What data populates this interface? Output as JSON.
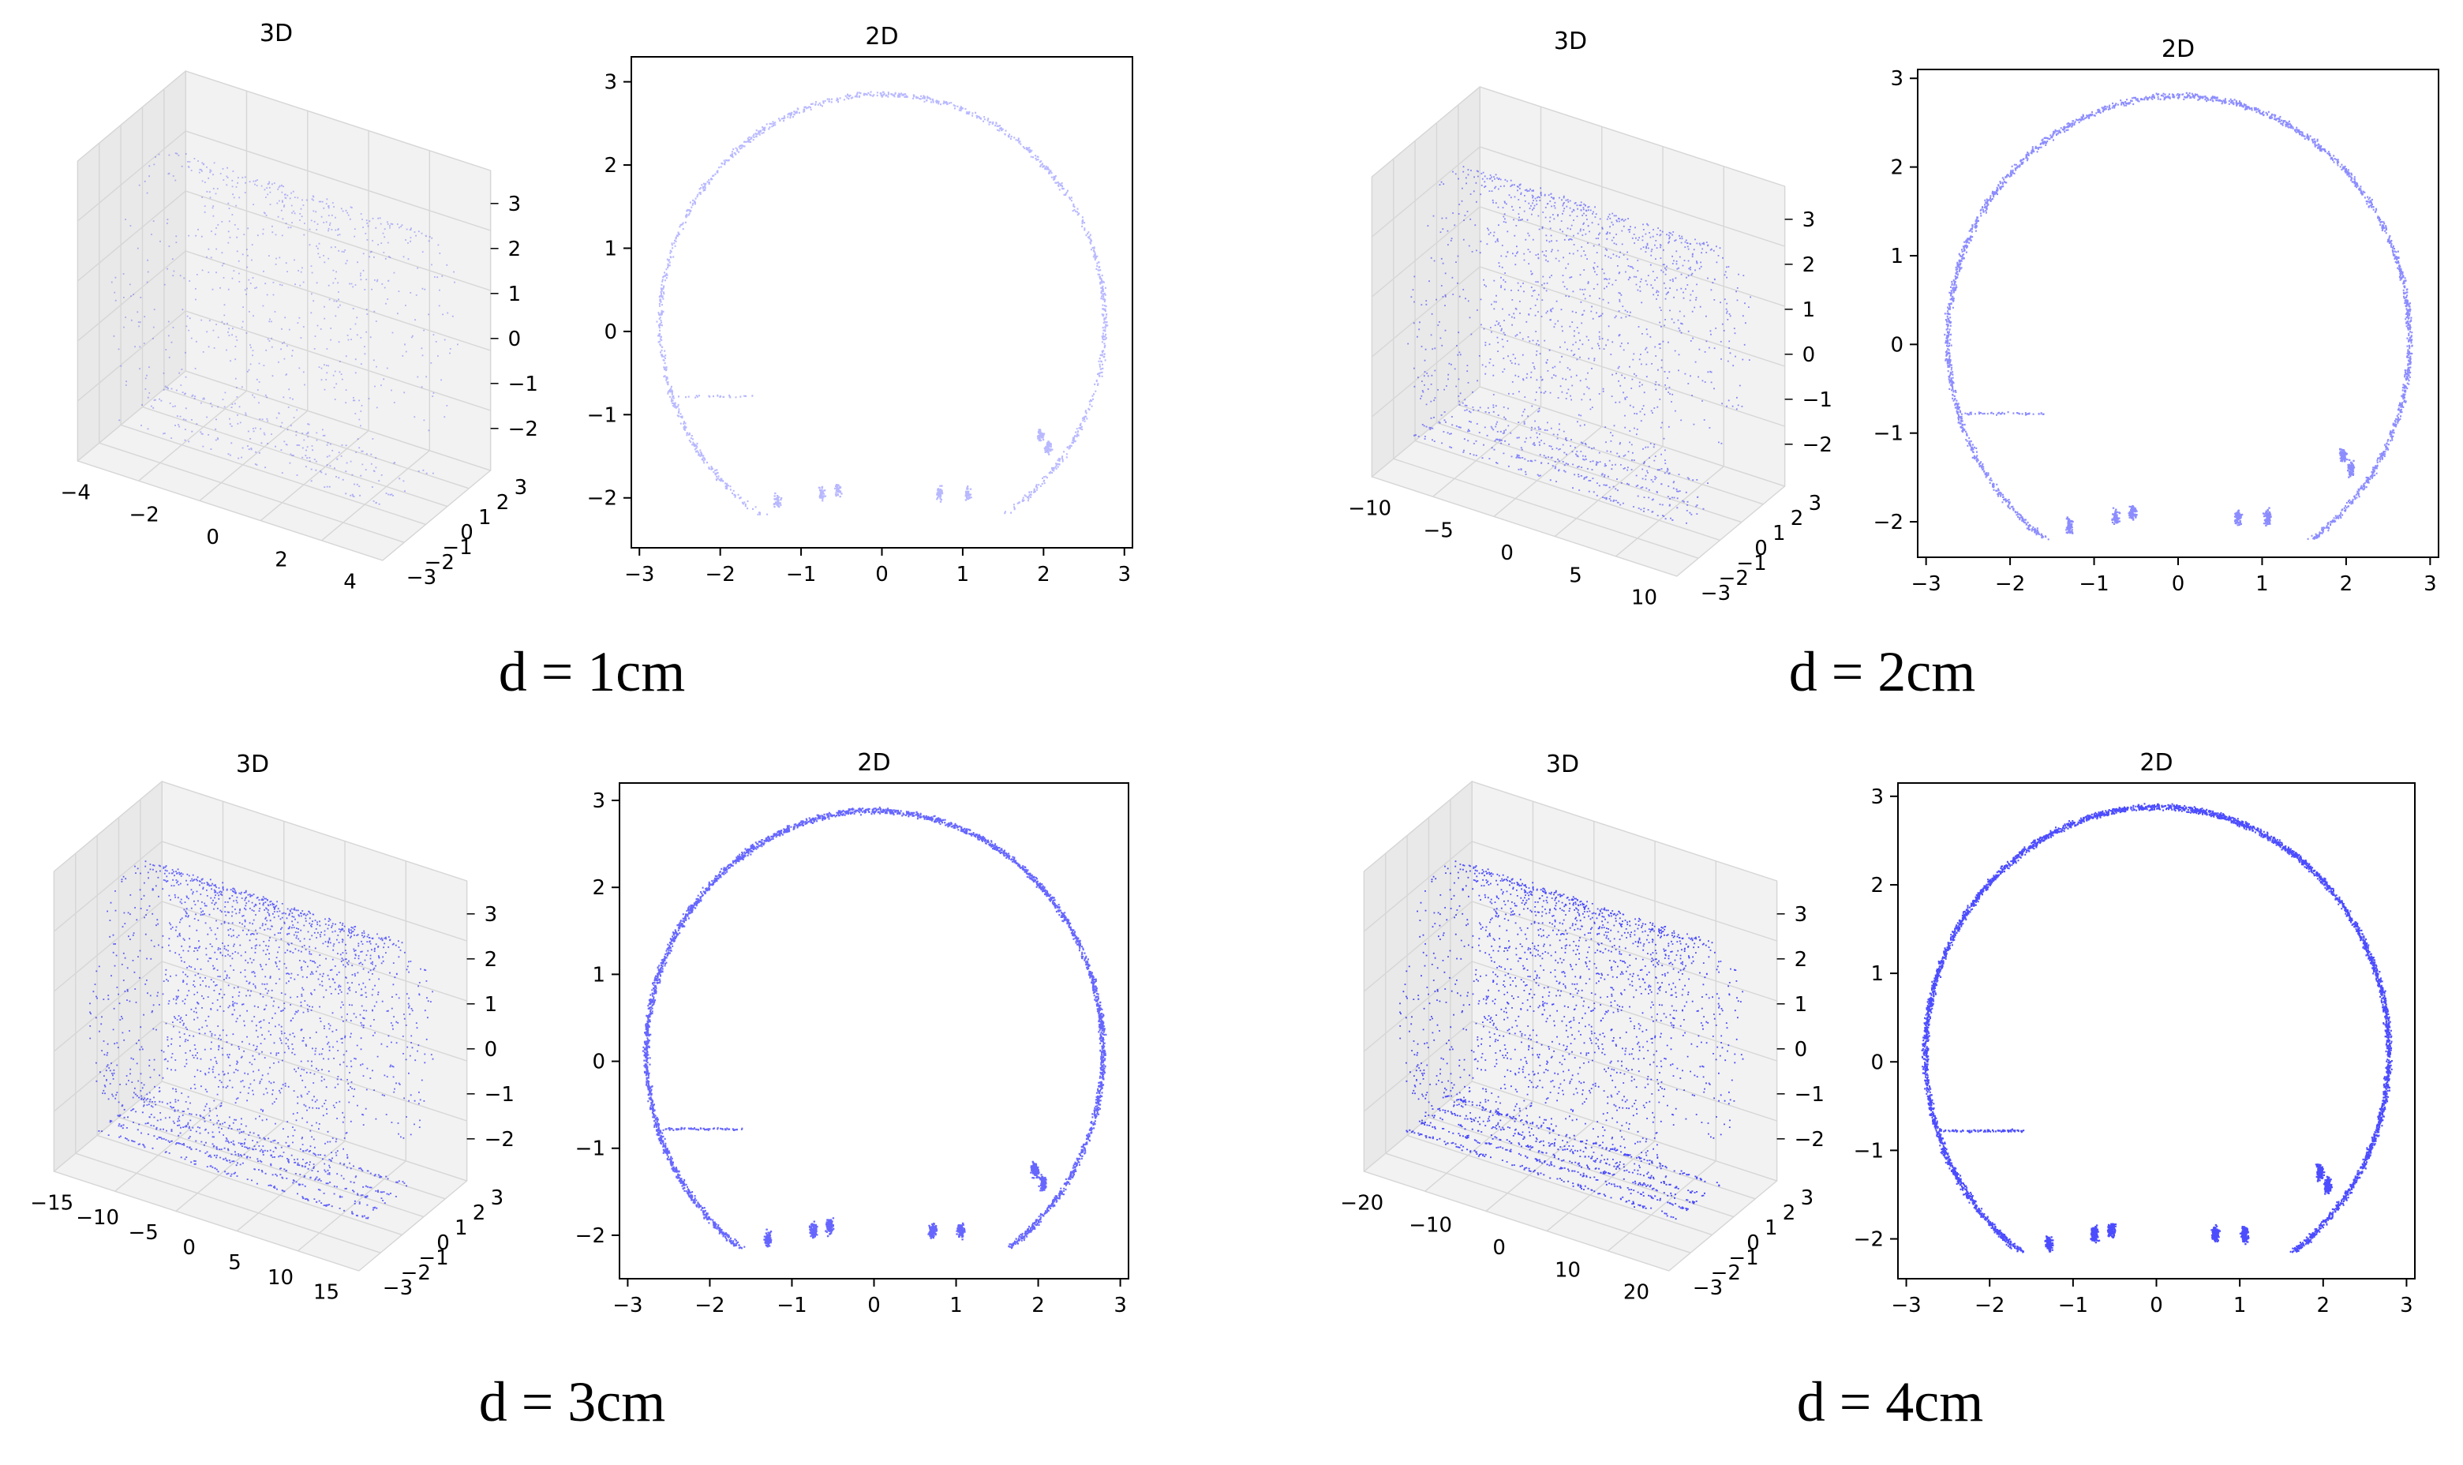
{
  "colors": {
    "points": "#0000ff",
    "pane": "#f2f2f2",
    "pane_side": "#e9e9e9",
    "grid": "#d6d6d6",
    "axis": "#000000"
  },
  "chart_data": [
    {
      "type": "scatter",
      "caption": "d = 1cm",
      "density": "sparse",
      "plot3d": {
        "title": "3D",
        "x_ticks": [
          "−4",
          "−2",
          "0",
          "2",
          "4"
        ],
        "y_ticks": [
          "−3",
          "−2",
          "−1",
          "0",
          "1",
          "2",
          "3"
        ],
        "z_ticks": [
          "−2",
          "−1",
          "0",
          "1",
          "2",
          "3"
        ]
      },
      "plot2d": {
        "title": "2D",
        "xlim": [
          -3.1,
          3.1
        ],
        "ylim": [
          -2.6,
          3.3
        ],
        "x_ticks": [
          "−3",
          "−2",
          "−1",
          "0",
          "1",
          "2",
          "3"
        ],
        "y_ticks": [
          "−2",
          "−1",
          "0",
          "1",
          "2",
          "3"
        ],
        "ring": {
          "cx": 0.0,
          "cy": 0.1,
          "r": 2.75,
          "bottom_cut_y": -2.2
        }
      }
    },
    {
      "type": "scatter",
      "caption": "d = 2cm",
      "density": "medium",
      "plot3d": {
        "title": "3D",
        "x_ticks": [
          "−10",
          "−5",
          "0",
          "5",
          "10"
        ],
        "y_ticks": [
          "−3",
          "−2",
          "−1",
          "0",
          "1",
          "2",
          "3"
        ],
        "z_ticks": [
          "−2",
          "−1",
          "0",
          "1",
          "2",
          "3"
        ]
      },
      "plot2d": {
        "title": "2D",
        "xlim": [
          -3.1,
          3.1
        ],
        "ylim": [
          -2.4,
          3.1
        ],
        "x_ticks": [
          "−3",
          "−2",
          "−1",
          "0",
          "1",
          "2",
          "3"
        ],
        "y_ticks": [
          "−2",
          "−1",
          "0",
          "1",
          "2",
          "3"
        ],
        "ring": {
          "cx": 0.0,
          "cy": 0.05,
          "r": 2.75,
          "bottom_cut_y": -2.2
        }
      }
    },
    {
      "type": "scatter",
      "caption": "d = 3cm",
      "density": "dense",
      "plot3d": {
        "title": "3D",
        "x_ticks": [
          "−15",
          "−10",
          "−5",
          "0",
          "5",
          "10",
          "15"
        ],
        "y_ticks": [
          "−3",
          "−2",
          "−1",
          "0",
          "1",
          "2",
          "3"
        ],
        "z_ticks": [
          "−2",
          "−1",
          "0",
          "1",
          "2",
          "3"
        ]
      },
      "plot2d": {
        "title": "2D",
        "xlim": [
          -3.1,
          3.1
        ],
        "ylim": [
          -2.5,
          3.2
        ],
        "x_ticks": [
          "−3",
          "−2",
          "−1",
          "0",
          "1",
          "2",
          "3"
        ],
        "y_ticks": [
          "−2",
          "−1",
          "0",
          "1",
          "2",
          "3"
        ],
        "ring": {
          "cx": 0.0,
          "cy": 0.1,
          "r": 2.78,
          "bottom_cut_y": -2.15
        }
      }
    },
    {
      "type": "scatter",
      "caption": "d = 4cm",
      "density": "very-dense",
      "plot3d": {
        "title": "3D",
        "x_ticks": [
          "−20",
          "−10",
          "0",
          "10",
          "20"
        ],
        "y_ticks": [
          "−3",
          "−2",
          "−1",
          "0",
          "1",
          "2",
          "3"
        ],
        "z_ticks": [
          "−2",
          "−1",
          "0",
          "1",
          "2",
          "3"
        ]
      },
      "plot2d": {
        "title": "2D",
        "xlim": [
          -3.1,
          3.1
        ],
        "ylim": [
          -2.45,
          3.15
        ],
        "x_ticks": [
          "−3",
          "−2",
          "−1",
          "0",
          "1",
          "2",
          "3"
        ],
        "y_ticks": [
          "−2",
          "−1",
          "0",
          "1",
          "2",
          "3"
        ],
        "ring": {
          "cx": 0.0,
          "cy": 0.1,
          "r": 2.78,
          "bottom_cut_y": -2.15
        }
      }
    }
  ]
}
